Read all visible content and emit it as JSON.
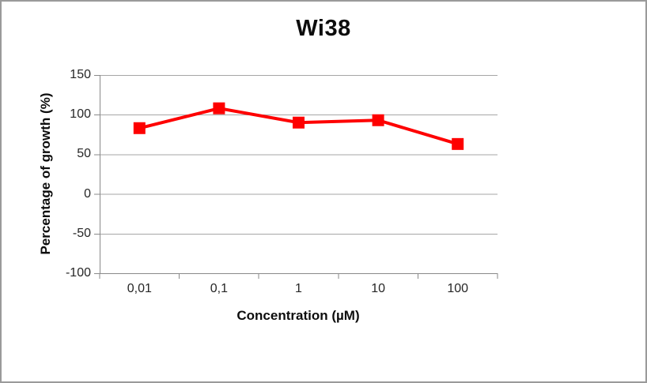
{
  "frame": {
    "background": "#ffffff",
    "border_color": "#9a9a9a"
  },
  "chart_data": {
    "type": "line",
    "title": "Wi38",
    "xlabel": "Concentration (µM)",
    "ylabel": "Percentage of growth (%)",
    "categories": [
      "0,01",
      "0,1",
      "1",
      "10",
      "100"
    ],
    "x_scale_note": "category axis (log-spaced concentrations labeled as text)",
    "series": [
      {
        "name": "Wi38",
        "values": [
          83,
          108,
          90,
          93,
          63
        ],
        "color": "#fe0000",
        "marker": "square"
      }
    ],
    "ylim": [
      -100,
      150
    ],
    "yticks": [
      150,
      100,
      50,
      0,
      -50,
      -100
    ],
    "grid": true,
    "legend": false,
    "colors": {
      "gridline": "#a6a6a6",
      "axis": "#898989",
      "tick_label": "#262626",
      "title_text": "#0d0d0d"
    }
  }
}
